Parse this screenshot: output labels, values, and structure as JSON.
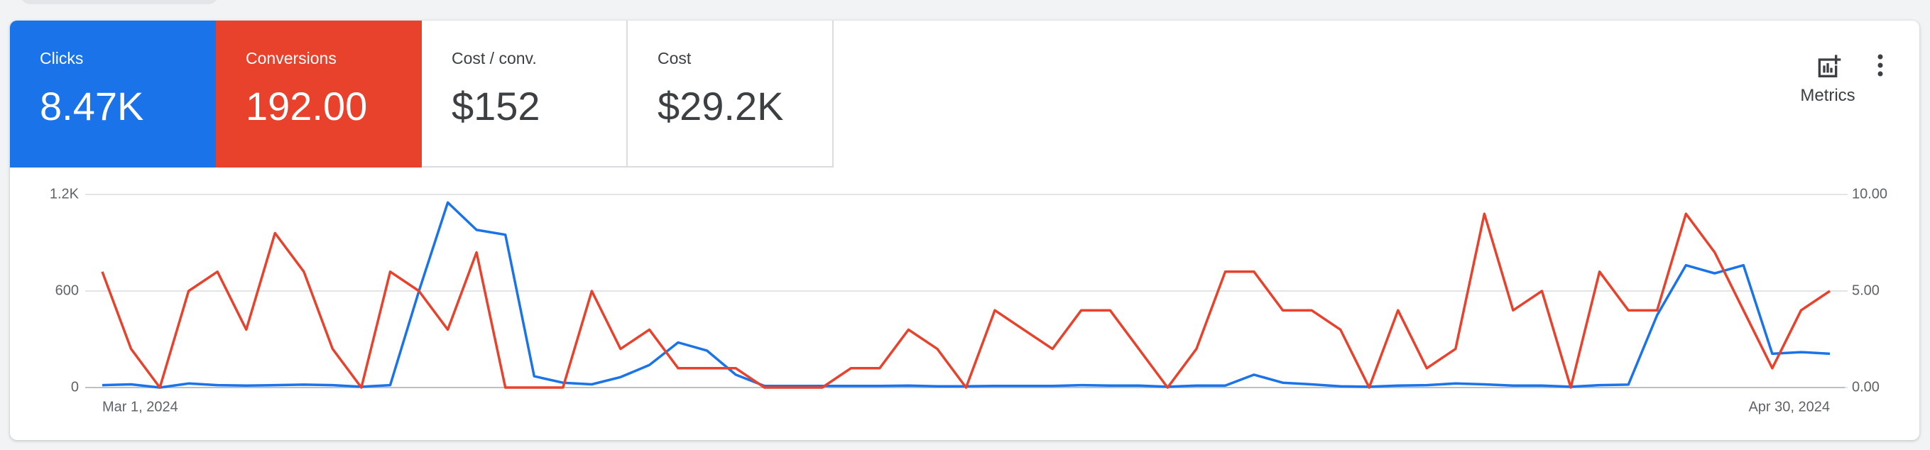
{
  "scorecards": [
    {
      "value": "8.47K"
    },
    {
      "value": "192.00"
    },
    {
      "label": "Cost / conv.",
      "value": "$152"
    },
    {
      "label": "Cost",
      "value": "$29.2K"
    }
  ],
  "toolbar": {
    "metrics_label": "Metrics"
  },
  "chart_data": {
    "type": "line",
    "categories": [
      "Mar 1, 2024",
      null,
      null,
      null,
      null,
      null,
      null,
      null,
      null,
      null,
      null,
      null,
      null,
      null,
      null,
      null,
      null,
      null,
      null,
      null,
      null,
      null,
      null,
      null,
      null,
      null,
      null,
      null,
      null,
      null,
      null,
      null,
      null,
      null,
      null,
      null,
      null,
      null,
      null,
      null,
      null,
      null,
      null,
      null,
      null,
      null,
      null,
      null,
      null,
      null,
      null,
      null,
      null,
      null,
      null,
      null,
      null,
      null,
      null,
      null,
      "Apr 30, 2024"
    ],
    "series": [
      {
        "name": "Clicks",
        "color": "#1a73e8",
        "axis": "y",
        "values": [
          15,
          20,
          0,
          25,
          15,
          12,
          15,
          18,
          15,
          5,
          15,
          600,
          1150,
          980,
          950,
          70,
          30,
          20,
          65,
          140,
          280,
          230,
          80,
          10,
          10,
          10,
          10,
          10,
          12,
          8,
          8,
          10,
          10,
          10,
          15,
          12,
          12,
          5,
          12,
          12,
          80,
          30,
          20,
          8,
          5,
          12,
          15,
          25,
          20,
          12,
          12,
          5,
          15,
          18,
          450,
          760,
          710,
          760,
          210,
          220,
          210
        ]
      },
      {
        "name": "Conversions",
        "color": "#e8412c",
        "axis": "y2",
        "values": [
          6,
          2,
          0,
          5,
          6,
          3,
          8,
          6,
          2,
          0,
          6,
          5,
          3,
          7,
          0,
          0,
          0,
          5,
          2,
          3,
          1,
          1,
          1,
          0,
          0,
          0,
          1,
          1,
          3,
          2,
          0,
          4,
          3,
          2,
          4,
          4,
          2,
          0,
          2,
          6,
          6,
          4,
          4,
          3,
          0,
          4,
          1,
          2,
          9,
          4,
          5,
          0,
          6,
          4,
          4,
          9,
          7,
          4,
          1,
          4,
          5
        ]
      }
    ],
    "ylim": [
      0,
      1200
    ],
    "yticks": [
      0,
      600,
      {
        "value": 1200,
        "label": "1.2K"
      }
    ],
    "y2lim": [
      0,
      10
    ],
    "y2ticks": [
      {
        "value": 0,
        "label": "0.00"
      },
      {
        "value": 5,
        "label": "5.00"
      },
      {
        "value": 10,
        "label": "10.00"
      }
    ],
    "grid": true
  }
}
